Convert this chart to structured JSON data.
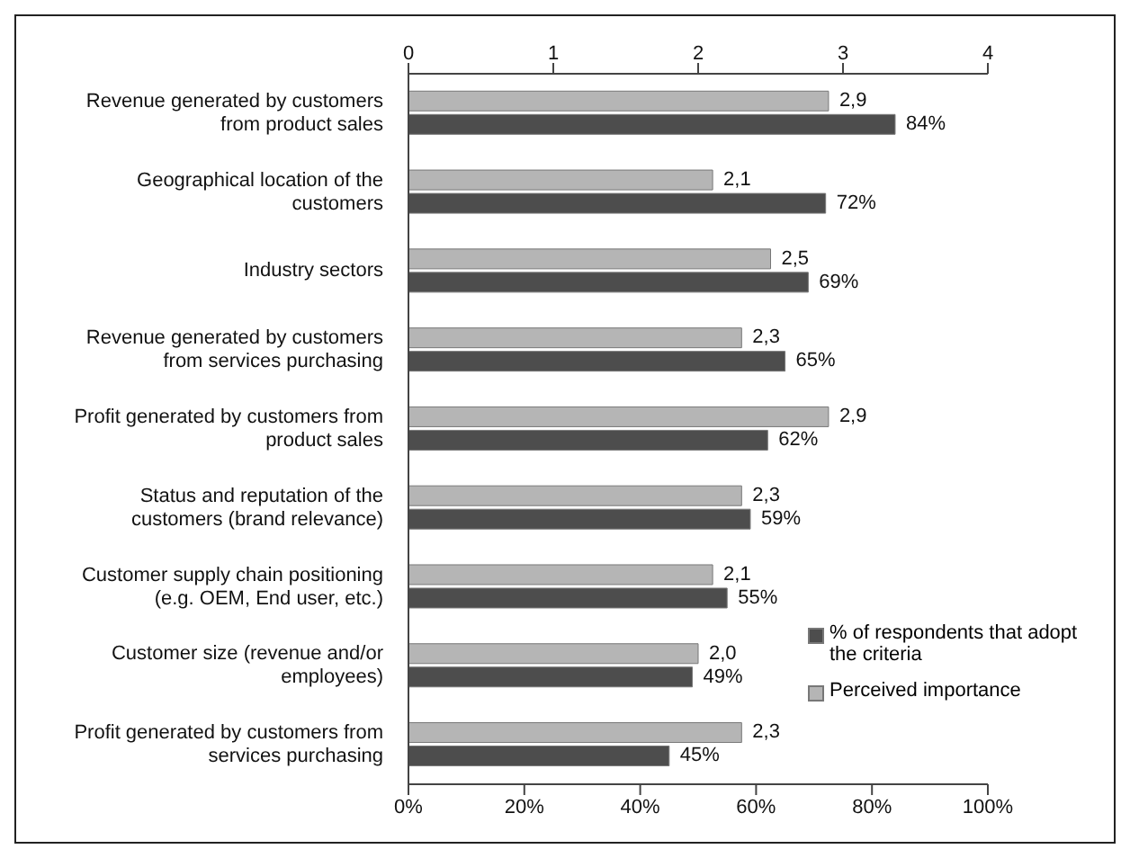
{
  "chart_data": {
    "type": "bar",
    "orientation": "horizontal",
    "categories": [
      "Revenue generated by customers from product sales",
      "Geographical location of the customers",
      "Industry sectors",
      "Revenue generated by customers from services purchasing",
      "Profit generated by customers from product sales",
      "Status and reputation of the customers (brand relevance)",
      "Customer supply chain positioning (e.g. OEM, End user, etc.)",
      "Customer size (revenue and/or employees)",
      "Profit generated by customers from services purchasing"
    ],
    "series": [
      {
        "name": "% of respondents that adopt the criteria",
        "color": "#4d4d4d",
        "values": [
          84,
          72,
          69,
          65,
          62,
          59,
          55,
          49,
          45
        ],
        "value_labels": [
          "84%",
          "72%",
          "69%",
          "65%",
          "62%",
          "59%",
          "55%",
          "49%",
          "45%"
        ]
      },
      {
        "name": "Perceived importance",
        "color": "#b5b5b5",
        "axis": "x2",
        "values": [
          2.9,
          2.1,
          2.5,
          2.3,
          2.9,
          2.3,
          2.1,
          2.0,
          2.3
        ],
        "value_labels": [
          "2,9",
          "2,1",
          "2,5",
          "2,3",
          "2,9",
          "2,3",
          "2,1",
          "2,0",
          "2,3"
        ]
      }
    ],
    "xlim": [
      0,
      100
    ],
    "xticks": [
      {
        "value": 0,
        "label": "0%"
      },
      {
        "value": 20,
        "label": "20%"
      },
      {
        "value": 40,
        "label": "40%"
      },
      {
        "value": 60,
        "label": "60%"
      },
      {
        "value": 80,
        "label": "80%"
      },
      {
        "value": 100,
        "label": "100%"
      }
    ],
    "x2lim": [
      0,
      4
    ],
    "x2ticks": [
      0,
      1,
      2,
      3,
      4
    ],
    "legend": "bottom right",
    "grid": false
  }
}
